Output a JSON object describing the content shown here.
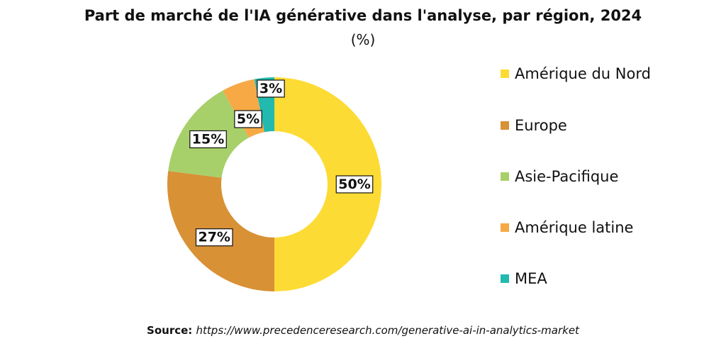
{
  "chart_data": {
    "type": "pie",
    "title": "Part de marché de l'IA générative dans l'analyse, par région, 2024",
    "subtitle": "(%)",
    "categories": [
      "Amérique du Nord",
      "Europe",
      "Asie-Pacifique",
      "Amérique latine",
      "MEA"
    ],
    "values": [
      50,
      27,
      15,
      5,
      3
    ],
    "data_labels": [
      "50%",
      "27%",
      "15%",
      "5%",
      "3%"
    ],
    "colors": [
      "#FDDB35",
      "#D89135",
      "#A8D06A",
      "#F6A945",
      "#22B9AE"
    ],
    "donut": true,
    "legend_position": "right"
  },
  "source": {
    "prefix": "Source:",
    "url": "https://www.precedenceresearch.com/generative-ai-in-analytics-market"
  }
}
